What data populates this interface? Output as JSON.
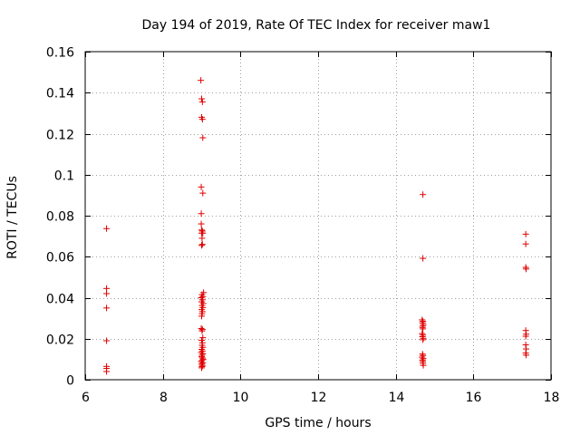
{
  "chart_data": {
    "type": "scatter",
    "title": "Day 194 of 2019, Rate Of TEC Index for receiver maw1",
    "xlabel": "GPS time / hours",
    "ylabel": "ROTI / TECUs",
    "xlim": [
      6,
      18
    ],
    "ylim": [
      0,
      0.16
    ],
    "xticks": [
      6,
      8,
      10,
      12,
      14,
      16,
      18
    ],
    "xtick_labels": [
      "6",
      "8",
      "10",
      "12",
      "14",
      "16",
      "18"
    ],
    "yticks": [
      0,
      0.02,
      0.04,
      0.06,
      0.08,
      0.1,
      0.12,
      0.14,
      0.16
    ],
    "ytick_labels": [
      "0",
      "0.02",
      "0.04",
      "0.06",
      "0.08",
      "0.1",
      "0.12",
      "0.14",
      "0.16"
    ],
    "grid": true,
    "marker": "+",
    "marker_color": "#e00000",
    "series": [
      {
        "name": "maw1",
        "points": [
          [
            6.55,
            0.0737
          ],
          [
            6.55,
            0.0445
          ],
          [
            6.55,
            0.042
          ],
          [
            6.55,
            0.035
          ],
          [
            6.55,
            0.019
          ],
          [
            6.55,
            0.0065
          ],
          [
            6.55,
            0.0055
          ],
          [
            6.55,
            0.004
          ],
          [
            8.98,
            0.146
          ],
          [
            9.0,
            0.137
          ],
          [
            9.02,
            0.1355
          ],
          [
            9.0,
            0.128
          ],
          [
            9.02,
            0.127
          ],
          [
            9.03,
            0.118
          ],
          [
            8.99,
            0.094
          ],
          [
            9.03,
            0.091
          ],
          [
            8.99,
            0.081
          ],
          [
            8.99,
            0.076
          ],
          [
            9.0,
            0.073
          ],
          [
            9.02,
            0.0725
          ],
          [
            9.0,
            0.0715
          ],
          [
            9.03,
            0.0715
          ],
          [
            9.01,
            0.069
          ],
          [
            9.02,
            0.066
          ],
          [
            9.0,
            0.0655
          ],
          [
            9.05,
            0.0425
          ],
          [
            9.01,
            0.0415
          ],
          [
            9.03,
            0.0405
          ],
          [
            8.99,
            0.04
          ],
          [
            9.02,
            0.039
          ],
          [
            9.0,
            0.038
          ],
          [
            9.04,
            0.0372
          ],
          [
            9.01,
            0.0362
          ],
          [
            9.03,
            0.0352
          ],
          [
            9.0,
            0.0342
          ],
          [
            9.02,
            0.0332
          ],
          [
            9.01,
            0.0322
          ],
          [
            9.0,
            0.031
          ],
          [
            8.99,
            0.025
          ],
          [
            9.02,
            0.0245
          ],
          [
            9.01,
            0.0238
          ],
          [
            9.03,
            0.0205
          ],
          [
            9.0,
            0.0192
          ],
          [
            9.02,
            0.018
          ],
          [
            9.01,
            0.0168
          ],
          [
            9.03,
            0.0158
          ],
          [
            9.0,
            0.0148
          ],
          [
            9.02,
            0.014
          ],
          [
            8.99,
            0.0133
          ],
          [
            9.03,
            0.0126
          ],
          [
            9.01,
            0.0119
          ],
          [
            9.0,
            0.0112
          ],
          [
            9.02,
            0.0106
          ],
          [
            9.04,
            0.01
          ],
          [
            9.01,
            0.0094
          ],
          [
            8.99,
            0.0088
          ],
          [
            9.03,
            0.0082
          ],
          [
            9.0,
            0.0076
          ],
          [
            9.02,
            0.007
          ],
          [
            9.01,
            0.0064
          ],
          [
            9.0,
            0.0058
          ],
          [
            14.7,
            0.0903
          ],
          [
            14.7,
            0.0592
          ],
          [
            14.68,
            0.0292
          ],
          [
            14.7,
            0.0285
          ],
          [
            14.69,
            0.0278
          ],
          [
            14.71,
            0.027
          ],
          [
            14.7,
            0.0262
          ],
          [
            14.69,
            0.0255
          ],
          [
            14.7,
            0.0248
          ],
          [
            14.68,
            0.0225
          ],
          [
            14.7,
            0.0218
          ],
          [
            14.69,
            0.021
          ],
          [
            14.71,
            0.0202
          ],
          [
            14.7,
            0.0195
          ],
          [
            14.69,
            0.0125
          ],
          [
            14.7,
            0.0118
          ],
          [
            14.68,
            0.011
          ],
          [
            14.71,
            0.0103
          ],
          [
            14.69,
            0.0096
          ],
          [
            14.7,
            0.0089
          ],
          [
            14.7,
            0.008
          ],
          [
            14.71,
            0.007
          ],
          [
            17.35,
            0.071
          ],
          [
            17.35,
            0.0662
          ],
          [
            17.35,
            0.0548
          ],
          [
            17.36,
            0.054
          ],
          [
            17.35,
            0.024
          ],
          [
            17.36,
            0.0222
          ],
          [
            17.35,
            0.0212
          ],
          [
            17.35,
            0.017
          ],
          [
            17.36,
            0.015
          ],
          [
            17.35,
            0.013
          ],
          [
            17.36,
            0.012
          ]
        ]
      }
    ]
  }
}
